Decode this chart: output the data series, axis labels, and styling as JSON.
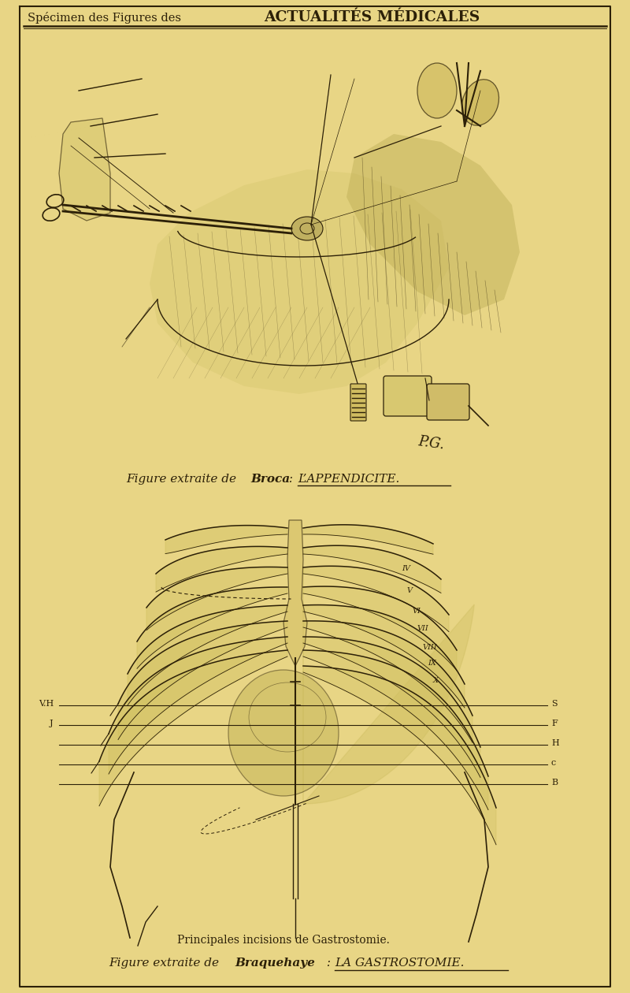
{
  "background_color": "#E8D585",
  "ink_color": "#2C2008",
  "title_small": "SPÉCIMEN DES FIGURES DES ",
  "title_big": "ACTUALITÉS MÉDICALES",
  "caption1_pre": "Figure extraite de ",
  "caption1_bold": "Broca",
  "caption1_post": " : ",
  "caption1_ul": "L’APPENDICITE.",
  "caption2": "Principales incisions de Gastrostomie.",
  "caption3_pre": "Figure extraite de ",
  "caption3_bold": "Braquehaye",
  "caption3_post": " : ",
  "caption3_ul": "LA GASTROSTOMIE.",
  "sig": "P.G.",
  "labels_left": [
    "V.H",
    "J"
  ],
  "labels_right": [
    "S",
    "F",
    "H",
    "c",
    "B"
  ],
  "roman_nums": [
    "IV",
    "V",
    "VI",
    "VII",
    "VIII",
    "IX",
    "X"
  ],
  "fig_width": 8.0,
  "fig_height": 12.6
}
